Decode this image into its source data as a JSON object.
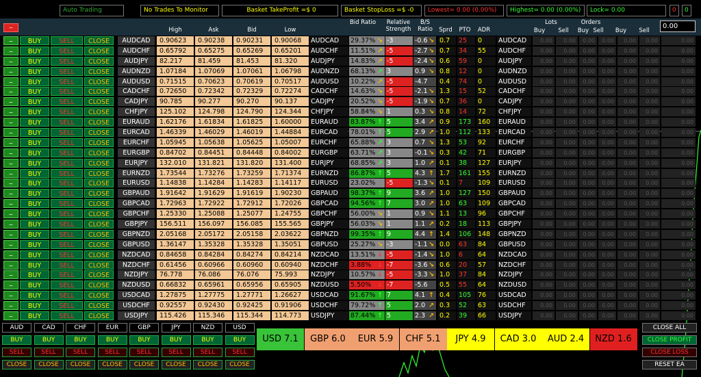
{
  "top": {
    "auto": "Auto Trading",
    "notrades": "No Trades To Monitor",
    "tp": "Basket TakeProfit =$ 0",
    "sl": "Basket StopLoss =$ -0",
    "lowest": "Lowest= 0.00 (0.00%)",
    "highest": "Highest= 0.00 (0.00%)",
    "lock": "Lock= 0.00",
    "z1": "0",
    "z2": "0"
  },
  "headers": {
    "high": "High",
    "ask": "Ask",
    "bid": "Bid",
    "low": "Low",
    "bid_ratio": "Bid Ratio",
    "rel_strength": "Relative Strength",
    "bs_ratio": "B/S Ratio",
    "sprd": "Sprd",
    "pto": "PTO",
    "adr": "ADR",
    "lots": "Lots",
    "orders": "Orders",
    "buy": "Buy",
    "sell": "Sell",
    "buy2": "Buy",
    "sell2": "Sell",
    "buy3": "Buy",
    "sell3": "Sell",
    "input": "0.00",
    "tilde": "~"
  },
  "labels": {
    "buy": "BUY",
    "sell": "SELL",
    "close": "CLOSE",
    "tilde": "~"
  },
  "rows": [
    {
      "s": "AUDCAD",
      "h": "0.90623",
      "a": "0.90238",
      "b": "0.90231",
      "l": "0.90068",
      "r": "29.37%",
      "rc": "#888",
      "rs": "-3",
      "rsc": "#888",
      "ar": "↘",
      "arc": "#fb0",
      "bs": "-0.6",
      "bsa": "↘",
      "sp": "0.7",
      "pto": "25",
      "ptoc": "#f33",
      "adr": "0"
    },
    {
      "s": "AUDCHF",
      "h": "0.65792",
      "a": "0.65275",
      "b": "0.65269",
      "l": "0.65201",
      "r": "11.51%",
      "rc": "#888",
      "rs": "-5",
      "rsc": "#d22",
      "ar": "↗",
      "arc": "#fb0",
      "bs": "-2.7",
      "bsa": "↘",
      "sp": "0.7",
      "pto": "34",
      "ptoc": "#f33",
      "adr": "55"
    },
    {
      "s": "AUDJPY",
      "h": "82.217",
      "a": "81.459",
      "b": "81.453",
      "l": "81.320",
      "r": "14.83%",
      "rc": "#888",
      "rs": "-5",
      "rsc": "#d22",
      "ar": "↗",
      "arc": "#fb0",
      "bs": "-2.4",
      "bsa": "↘",
      "sp": "0.6",
      "pto": "59",
      "ptoc": "#f33",
      "adr": "0"
    },
    {
      "s": "AUDNZD",
      "h": "1.07184",
      "a": "1.07069",
      "b": "1.07061",
      "l": "1.06798",
      "r": "68.13%",
      "rc": "#888",
      "rs": "3",
      "rsc": "#888",
      "ar": "↗",
      "arc": "#3f3",
      "bs": "0.9",
      "bsa": "↘",
      "sp": "0.8",
      "pto": "12",
      "ptoc": "#f33",
      "adr": "0"
    },
    {
      "s": "AUDUSD",
      "h": "0.71515",
      "a": "0.70623",
      "b": "0.70619",
      "l": "0.70517",
      "r": "10.22%",
      "rc": "#888",
      "rs": "-5",
      "rsc": "#d22",
      "ar": "↗",
      "arc": "#fb0",
      "bs": "-4.7",
      "bsa": "",
      "sp": "0.4",
      "pto": "74",
      "ptoc": "#f33",
      "adr": "0"
    },
    {
      "s": "CADCHF",
      "h": "0.72650",
      "a": "0.72342",
      "b": "0.72329",
      "l": "0.72274",
      "r": "14.63%",
      "rc": "#888",
      "rs": "-5",
      "rsc": "#d22",
      "ar": "↘",
      "arc": "#fb0",
      "bs": "-2.1",
      "bsa": "↘",
      "sp": "1.3",
      "pto": "15",
      "ptoc": "#f33",
      "adr": "52"
    },
    {
      "s": "CADJPY",
      "h": "90.785",
      "a": "90.277",
      "b": "90.270",
      "l": "90.137",
      "r": "20.52%",
      "rc": "#888",
      "rs": "-5",
      "rsc": "#d22",
      "ar": "↘",
      "arc": "#fb0",
      "bs": "-1.9",
      "bsa": "↘",
      "sp": "0.7",
      "pto": "36",
      "ptoc": "#f33",
      "adr": "0"
    },
    {
      "s": "CHFJPY",
      "h": "125.102",
      "a": "124.798",
      "b": "124.790",
      "l": "124.344",
      "r": "58.84%",
      "rc": "#888",
      "rs": "1",
      "rsc": "#888",
      "ar": "↘",
      "arc": "#fb0",
      "bs": "0.3",
      "bsa": "↘",
      "sp": "0.8",
      "pto": "14",
      "ptoc": "#f33",
      "adr": "72"
    },
    {
      "s": "EURAUD",
      "h": "1.62176",
      "a": "1.61834",
      "b": "1.61825",
      "l": "1.60000",
      "r": "83.87%",
      "rc": "#2a2",
      "rs": "5",
      "rsc": "#2a2",
      "ar": "↑",
      "arc": "#3f3",
      "bs": "3.4",
      "bsa": "↗",
      "sp": "0.9",
      "pto": "173",
      "ptoc": "#3f3",
      "adr": "160"
    },
    {
      "s": "EURCAD",
      "h": "1.46339",
      "a": "1.46029",
      "b": "1.46019",
      "l": "1.44884",
      "r": "78.01%",
      "rc": "#888",
      "rs": "5",
      "rsc": "#2a2",
      "ar": "↑",
      "arc": "#3f3",
      "bs": "2.9",
      "bsa": "↗",
      "sp": "1.0",
      "pto": "112",
      "ptoc": "#3f3",
      "adr": "133"
    },
    {
      "s": "EURCHF",
      "h": "1.05945",
      "a": "1.05638",
      "b": "1.05625",
      "l": "1.05007",
      "r": "65.88%",
      "rc": "#888",
      "rs": "3",
      "rsc": "#888",
      "ar": "↗",
      "arc": "#3f3",
      "bs": "0.7",
      "bsa": "↘",
      "sp": "1.3",
      "pto": "53",
      "ptoc": "#3f3",
      "adr": "92"
    },
    {
      "s": "EURGBP",
      "h": "0.84702",
      "a": "0.84451",
      "b": "0.84448",
      "l": "0.84002",
      "r": "63.71%",
      "rc": "#888",
      "rs": "3",
      "rsc": "#888",
      "ar": "↗",
      "arc": "#3f3",
      "bs": "-0.1",
      "bsa": "↘",
      "sp": "0.3",
      "pto": "42",
      "ptoc": "#3f3",
      "adr": "71"
    },
    {
      "s": "EURJPY",
      "h": "132.010",
      "a": "131.821",
      "b": "131.820",
      "l": "131.400",
      "r": "68.85%",
      "rc": "#888",
      "rs": "3",
      "rsc": "#888",
      "ar": "↗",
      "arc": "#3f3",
      "bs": "1.0",
      "bsa": "↗",
      "sp": "0.1",
      "pto": "38",
      "ptoc": "#3f3",
      "adr": "127"
    },
    {
      "s": "EURNZD",
      "h": "1.73544",
      "a": "1.73276",
      "b": "1.73259",
      "l": "1.71374",
      "r": "86.87%",
      "rc": "#2a2",
      "rs": "5",
      "rsc": "#2a2",
      "ar": "↑",
      "arc": "#3f3",
      "bs": "4.3",
      "bsa": "↑",
      "sp": "1.7",
      "pto": "161",
      "ptoc": "#3f3",
      "adr": "155"
    },
    {
      "s": "EURUSD",
      "h": "1.14838",
      "a": "1.14284",
      "b": "1.14283",
      "l": "1.14117",
      "r": "23.02%",
      "rc": "#888",
      "rs": "-5",
      "rsc": "#d22",
      "ar": "",
      "arc": "#fb0",
      "bs": "-1.3",
      "bsa": "↘",
      "sp": "0.1",
      "pto": "7",
      "ptoc": "#f33",
      "adr": "109"
    },
    {
      "s": "GBPAUD",
      "h": "1.91642",
      "a": "1.91629",
      "b": "1.91619",
      "l": "1.90230",
      "r": "98.37%",
      "rc": "#2a2",
      "rs": "9",
      "rsc": "#2a2",
      "ar": "↑",
      "arc": "#3f3",
      "bs": "3.6",
      "bsa": "↗",
      "sp": "1.0",
      "pto": "127",
      "ptoc": "#3f3",
      "adr": "150"
    },
    {
      "s": "GBPCAD",
      "h": "1.72963",
      "a": "1.72922",
      "b": "1.72912",
      "l": "1.72026",
      "r": "94.56%",
      "rc": "#2a2",
      "rs": "7",
      "rsc": "#2a2",
      "ar": "↑",
      "arc": "#3f3",
      "bs": "3.0",
      "bsa": "↗",
      "sp": "1.0",
      "pto": "63",
      "ptoc": "#3f3",
      "adr": "109"
    },
    {
      "s": "GBPCHF",
      "h": "1.25330",
      "a": "1.25088",
      "b": "1.25077",
      "l": "1.24755",
      "r": "56.00%",
      "rc": "#888",
      "rs": "1",
      "rsc": "#888",
      "ar": "↘",
      "arc": "#fb0",
      "bs": "0.9",
      "bsa": "↘",
      "sp": "1.1",
      "pto": "13",
      "ptoc": "#3f3",
      "adr": "96"
    },
    {
      "s": "GBPJPY",
      "h": "156.511",
      "a": "156.097",
      "b": "156.085",
      "l": "155.565",
      "r": "56.03%",
      "rc": "#888",
      "rs": "1",
      "rsc": "#888",
      "ar": "↘",
      "arc": "#fb0",
      "bs": "1.1",
      "bsa": "↗",
      "sp": "0.2",
      "pto": "18",
      "ptoc": "#3f3",
      "adr": "113"
    },
    {
      "s": "GBPNZD",
      "h": "2.05168",
      "a": "2.05172",
      "b": "2.05158",
      "l": "2.03622",
      "r": "99.35%",
      "rc": "#2a2",
      "rs": "9",
      "rsc": "#2a2",
      "ar": "↑",
      "arc": "#3f3",
      "bs": "4.4",
      "bsa": "↑",
      "sp": "1.4",
      "pto": "106",
      "ptoc": "#3f3",
      "adr": "148"
    },
    {
      "s": "GBPUSD",
      "h": "1.36147",
      "a": "1.35328",
      "b": "1.35328",
      "l": "1.35051",
      "r": "25.27%",
      "rc": "#888",
      "rs": "-3",
      "rsc": "#888",
      "ar": "↘",
      "arc": "#fb0",
      "bs": "-1.1",
      "bsa": "↘",
      "sp": "0.0",
      "pto": "63",
      "ptoc": "#f33",
      "adr": "84"
    },
    {
      "s": "NZDCAD",
      "h": "0.84658",
      "a": "0.84284",
      "b": "0.84274",
      "l": "0.84214",
      "r": "13.51%",
      "rc": "#888",
      "rs": "-5",
      "rsc": "#d22",
      "ar": "↓",
      "arc": "#f33",
      "bs": "-1.4",
      "bsa": "↘",
      "sp": "1.0",
      "pto": "6",
      "ptoc": "#f33",
      "adr": "64"
    },
    {
      "s": "NZDCHF",
      "h": "0.61456",
      "a": "0.60966",
      "b": "0.60960",
      "l": "0.60940",
      "r": "3.88%",
      "rc": "#d22",
      "rs": "-7",
      "rsc": "#d22",
      "ar": "↓",
      "arc": "#f33",
      "bs": "-3.6",
      "bsa": "↘",
      "sp": "0.6",
      "pto": "20",
      "ptoc": "#f33",
      "adr": "57"
    },
    {
      "s": "NZDJPY",
      "h": "76.778",
      "a": "76.086",
      "b": "76.076",
      "l": "75.993",
      "r": "10.57%",
      "rc": "#888",
      "rs": "-5",
      "rsc": "#d22",
      "ar": "↓",
      "arc": "#f33",
      "bs": "-3.3",
      "bsa": "↘",
      "sp": "1.0",
      "pto": "37",
      "ptoc": "#f33",
      "adr": "84"
    },
    {
      "s": "NZDUSD",
      "h": "0.66832",
      "a": "0.65961",
      "b": "0.65956",
      "l": "0.65905",
      "r": "5.50%",
      "rc": "#d22",
      "rs": "-7",
      "rsc": "#d22",
      "ar": "↓",
      "arc": "#f33",
      "bs": "-5.6",
      "bsa": "",
      "sp": "0.5",
      "pto": "55",
      "ptoc": "#f33",
      "adr": "64"
    },
    {
      "s": "USDCAD",
      "h": "1.27875",
      "a": "1.27775",
      "b": "1.27771",
      "l": "1.26627",
      "r": "91.67%",
      "rc": "#2a2",
      "rs": "7",
      "rsc": "#2a2",
      "ar": "↑",
      "arc": "#3f3",
      "bs": "4.1",
      "bsa": "↑",
      "sp": "0.4",
      "pto": "105",
      "ptoc": "#3f3",
      "adr": "76"
    },
    {
      "s": "USDCHF",
      "h": "0.92557",
      "a": "0.92430",
      "b": "0.92425",
      "l": "0.91906",
      "r": "79.72%",
      "rc": "#888",
      "rs": "5",
      "rsc": "#2a2",
      "ar": "↑",
      "arc": "#3f3",
      "bs": "2.0",
      "bsa": "↗",
      "sp": "0.3",
      "pto": "52",
      "ptoc": "#3f3",
      "adr": "63"
    },
    {
      "s": "USDJPY",
      "h": "115.426",
      "a": "115.346",
      "b": "115.344",
      "l": "114.773",
      "r": "87.44%",
      "rc": "#2a2",
      "rs": "5",
      "rsc": "#2a2",
      "ar": "↑",
      "arc": "#3f3",
      "bs": "2.3",
      "bsa": "↗",
      "sp": "0.2",
      "pto": "39",
      "ptoc": "#3f3",
      "adr": "66"
    }
  ],
  "grid_zero": "0.00",
  "currencies": [
    "AUD",
    "CAD",
    "CHF",
    "EUR",
    "GBP",
    "JPY",
    "NZD",
    "USD"
  ],
  "strength": [
    {
      "c": "USD",
      "v": "7.1",
      "bg": "#39c339"
    },
    {
      "c": "GBP",
      "v": "6.0",
      "bg": "#f0a070"
    },
    {
      "c": "EUR",
      "v": "5.9",
      "bg": "#f0a070"
    },
    {
      "c": "CHF",
      "v": "5.1",
      "bg": "#f0a070"
    },
    {
      "c": "JPY",
      "v": "4.9",
      "bg": "#ffff00"
    },
    {
      "c": "CAD",
      "v": "3.0",
      "bg": "#ffff00"
    },
    {
      "c": "AUD",
      "v": "2.4",
      "bg": "#ffff00"
    },
    {
      "c": "NZD",
      "v": "1.6",
      "bg": "#e02020"
    }
  ],
  "right_buttons": {
    "close_all": "CLOSE ALL",
    "close_profit": "CLOSE PROFIT",
    "close_loss": "CLOSE LOSS",
    "reset": "RESET EA"
  }
}
